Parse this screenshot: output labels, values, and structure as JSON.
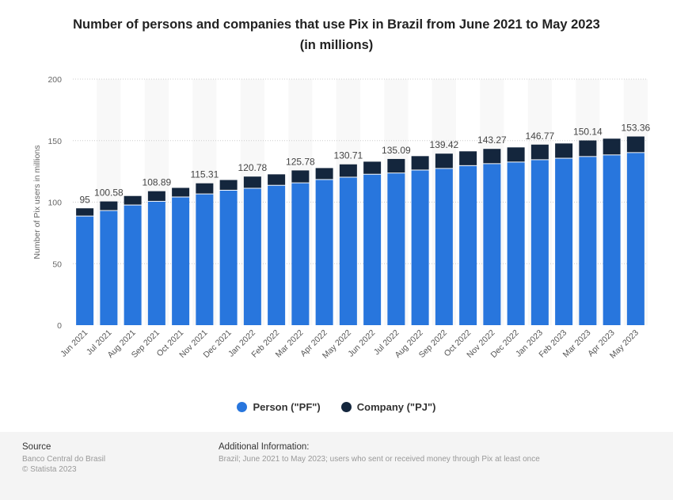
{
  "chart_data": {
    "type": "bar",
    "stacked": true,
    "title": "Number of persons and companies that use Pix in Brazil from June 2021 to May 2023 (in millions)",
    "title_lines": [
      "Number of persons and companies that use Pix in Brazil from June 2021 to May 2023",
      "(in millions)"
    ],
    "ylabel": "Number of Pix users in millions",
    "ylim": [
      0,
      200
    ],
    "yticks": [
      0,
      50,
      100,
      150,
      200
    ],
    "grid": true,
    "legend_position": "bottom",
    "categories": [
      "Jun 2021",
      "Jul 2021",
      "Aug 2021",
      "Sep 2021",
      "Oct 2021",
      "Nov 2021",
      "Dec 2021",
      "Jan 2022",
      "Feb 2022",
      "Mar 2022",
      "Apr 2022",
      "May 2022",
      "Jun 2022",
      "Jul 2022",
      "Aug 2022",
      "Sep 2022",
      "Oct 2022",
      "Nov 2022",
      "Dec 2022",
      "Jan 2023",
      "Feb 2023",
      "Mar 2023",
      "Apr 2023",
      "May 2023"
    ],
    "series": [
      {
        "name": "Person (\"PF\")",
        "color": "#2876dd",
        "values": [
          89,
          93.5,
          98,
          101,
          104.5,
          107,
          110,
          111.6,
          114,
          116,
          118.7,
          120.6,
          123,
          124,
          126.4,
          127.7,
          130,
          131.6,
          132.9,
          134.8,
          136,
          137.4,
          138.7,
          140.6
        ]
      },
      {
        "name": "Company (\"PJ\")",
        "color": "#14263d",
        "values": [
          6,
          7.08,
          7,
          7.89,
          7.1,
          8.31,
          8,
          9.18,
          8.6,
          9.78,
          9,
          10.11,
          9.9,
          11.09,
          11,
          11.72,
          11.3,
          11.67,
          11.6,
          11.97,
          11.7,
          12.74,
          12.9,
          12.76
        ]
      }
    ],
    "total_labels": [
      "95",
      "100.58",
      null,
      "108.89",
      null,
      "115.31",
      null,
      "120.78",
      null,
      "125.78",
      null,
      "130.71",
      null,
      "135.09",
      null,
      "139.42",
      null,
      "143.27",
      null,
      "146.77",
      null,
      "150.14",
      null,
      "153.36"
    ]
  },
  "footer": {
    "source_heading": "Source",
    "source": "Banco Central do Brasil",
    "copyright": "© Statista 2023",
    "info_heading": "Additional Information:",
    "info": "Brazil; June 2021 to May 2023; users who sent or received money through Pix at least once"
  }
}
